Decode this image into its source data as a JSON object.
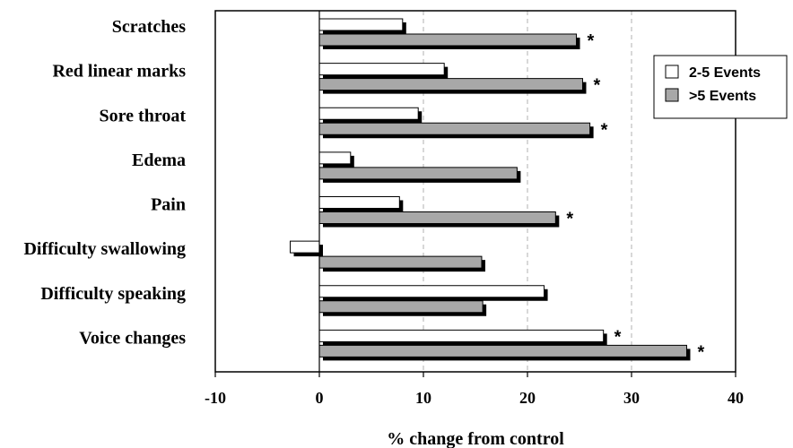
{
  "chart_data": {
    "type": "bar",
    "orientation": "horizontal",
    "categories": [
      "Scratches",
      "Red linear marks",
      "Sore throat",
      "Edema",
      "Pain",
      "Difficulty swallowing",
      "Difficulty speaking",
      "Voice changes"
    ],
    "series": [
      {
        "name": "2-5 Events",
        "values": [
          8,
          12,
          9.5,
          3,
          7.7,
          -2.8,
          21.6,
          27.3
        ],
        "significant": [
          false,
          false,
          false,
          false,
          false,
          false,
          false,
          true
        ]
      },
      {
        "name": ">5 Events",
        "values": [
          24.7,
          25.3,
          26,
          19,
          22.7,
          15.6,
          15.7,
          35.3
        ],
        "significant": [
          true,
          true,
          true,
          false,
          true,
          false,
          false,
          true
        ]
      }
    ],
    "significance_marker": "*",
    "xlabel": "% change from control",
    "xlim": [
      -10,
      40
    ],
    "xticks": [
      "-10",
      "0",
      "10",
      "20",
      "30",
      "40"
    ],
    "grid": "dashed vertical lines at 10, 20, 30",
    "legend_position": "right",
    "colors": {
      "series1": "#ffffff",
      "series2": "#a8a8a8",
      "shadow": "#000000"
    }
  }
}
